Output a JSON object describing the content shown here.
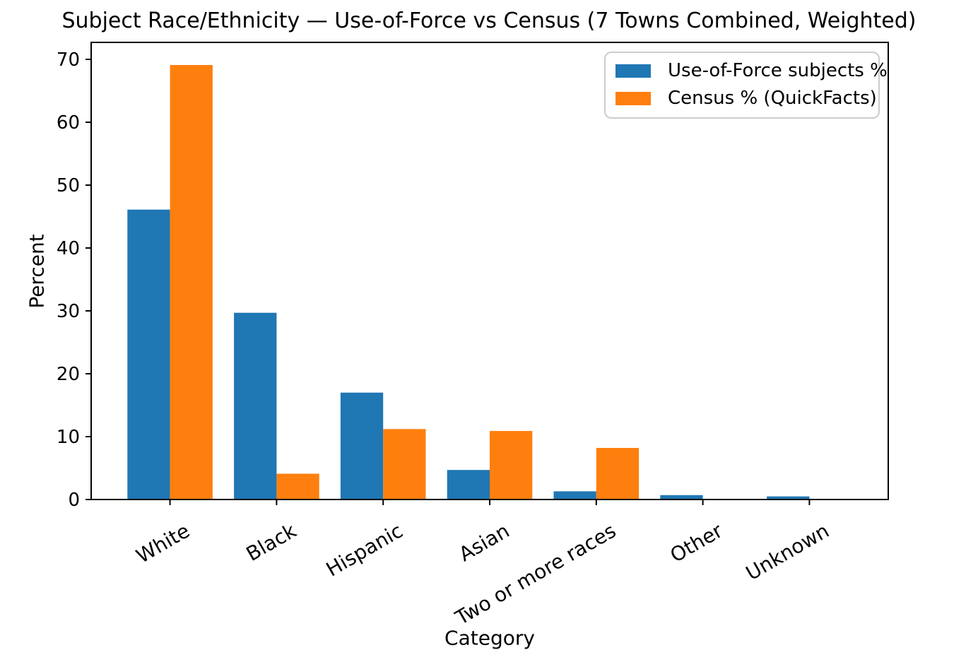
{
  "chart_data": {
    "type": "bar",
    "title": "Subject Race/Ethnicity — Use-of-Force vs Census (7 Towns Combined, Weighted)",
    "xlabel": "Category",
    "ylabel": "Percent",
    "categories": [
      "White",
      "Black",
      "Hispanic",
      "Asian",
      "Two or more races",
      "Other",
      "Unknown"
    ],
    "series": [
      {
        "name": "Use-of-Force subjects %",
        "color": "#1f77b4",
        "values": [
          46.1,
          29.7,
          17.0,
          4.7,
          1.3,
          0.7,
          0.5
        ]
      },
      {
        "name": "Census % (QuickFacts)",
        "color": "#ff7f0e",
        "values": [
          69.1,
          4.1,
          11.2,
          10.9,
          8.2,
          0.0,
          0.0
        ]
      }
    ],
    "ylim": [
      0,
      72.7
    ],
    "yticks": [
      0,
      10,
      20,
      30,
      40,
      50,
      60,
      70
    ],
    "bar_width": 0.4,
    "x_tick_rotation": 30,
    "grid": false,
    "legend_position": "upper right"
  }
}
